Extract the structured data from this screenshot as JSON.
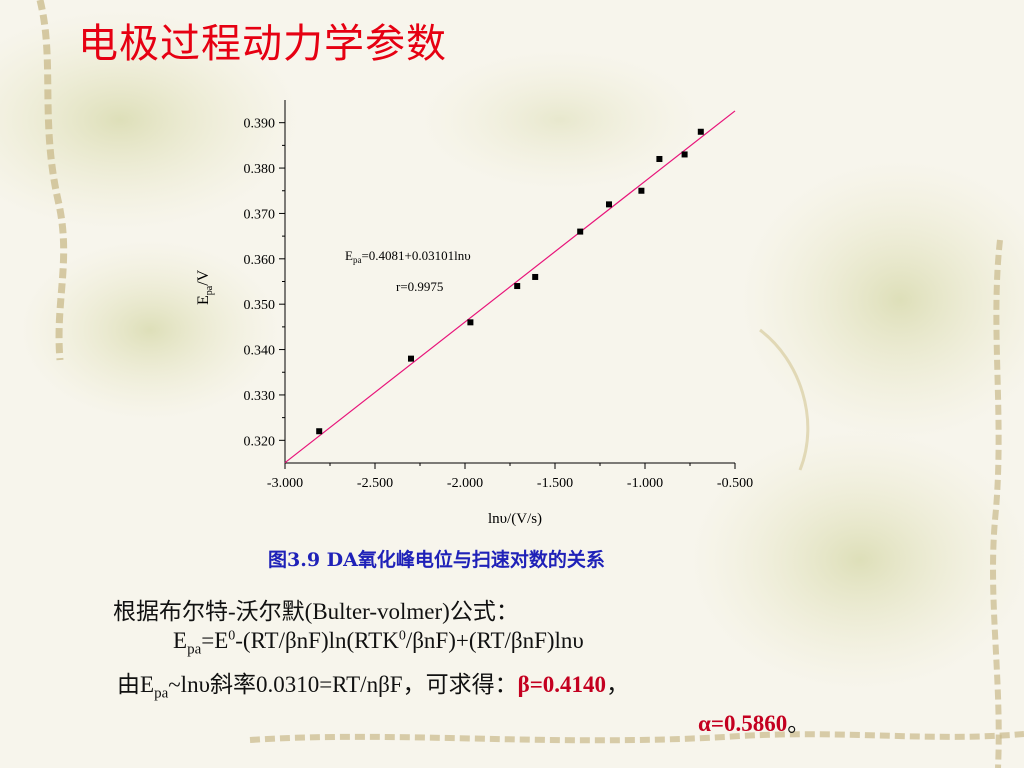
{
  "slide": {
    "title": "电极过程动力学参数",
    "caption": "图3.9  DA氧化峰电位与扫速对数的关系",
    "text": {
      "line1": "根据布尔特-沃尔默(Bulter-volmer)公式：",
      "eq_E": "E",
      "eq_pa": "pa",
      "eq_eq": "=E",
      "eq_zero1": "0",
      "eq_mid": "-(RT/βnF)ln(RTK",
      "eq_zero2": "0",
      "eq_end": "/βnF)+(RT/βnF)lnυ",
      "l3_a": "由E",
      "l3_pa": "pa",
      "l3_b": "~lnυ斜率0.0310=RT/nβF，可求得：",
      "beta": "β=0.4140",
      "comma": "，",
      "alpha": "α=0.5860",
      "period": "。"
    }
  },
  "chart_data": {
    "type": "scatter",
    "title": "",
    "xlabel": "lnυ/(V/s)",
    "ylabel_main": "E",
    "ylabel_sub": "pa",
    "ylabel_unit": "/V",
    "xlim": [
      -3.0,
      -0.5
    ],
    "ylim": [
      0.315,
      0.395
    ],
    "x_ticks": [
      -3.0,
      -2.5,
      -2.0,
      -1.5,
      -1.0,
      -0.5
    ],
    "x_tick_labels": [
      "-3.000",
      "-2.500",
      "-2.000",
      "-1.500",
      "-1.000",
      "-0.500"
    ],
    "y_ticks": [
      0.32,
      0.33,
      0.34,
      0.35,
      0.36,
      0.37,
      0.38,
      0.39
    ],
    "y_tick_labels": [
      "0.320",
      "0.330",
      "0.340",
      "0.350",
      "0.360",
      "0.370",
      "0.380",
      "0.390"
    ],
    "points": [
      {
        "x": -2.81,
        "y": 0.322
      },
      {
        "x": -2.3,
        "y": 0.338
      },
      {
        "x": -1.97,
        "y": 0.346
      },
      {
        "x": -1.71,
        "y": 0.354
      },
      {
        "x": -1.61,
        "y": 0.356
      },
      {
        "x": -1.36,
        "y": 0.366
      },
      {
        "x": -1.2,
        "y": 0.372
      },
      {
        "x": -1.02,
        "y": 0.375
      },
      {
        "x": -0.92,
        "y": 0.382
      },
      {
        "x": -0.78,
        "y": 0.383
      },
      {
        "x": -0.69,
        "y": 0.388
      }
    ],
    "fit": {
      "intercept": 0.4081,
      "slope": 0.03101,
      "x_range": [
        -3.0,
        -0.5
      ],
      "color": "#e8147a"
    },
    "annotation": {
      "eq_E": "E",
      "eq_pa": "pa",
      "eq_rest": "=0.4081+0.03101lnυ",
      "r": "r=0.9975"
    },
    "point_color": "#000000",
    "grid": false
  },
  "colors": {
    "title": "#e60012",
    "caption": "#1f21b8",
    "highlight": "#c40020",
    "background": "#f7f5ec"
  }
}
